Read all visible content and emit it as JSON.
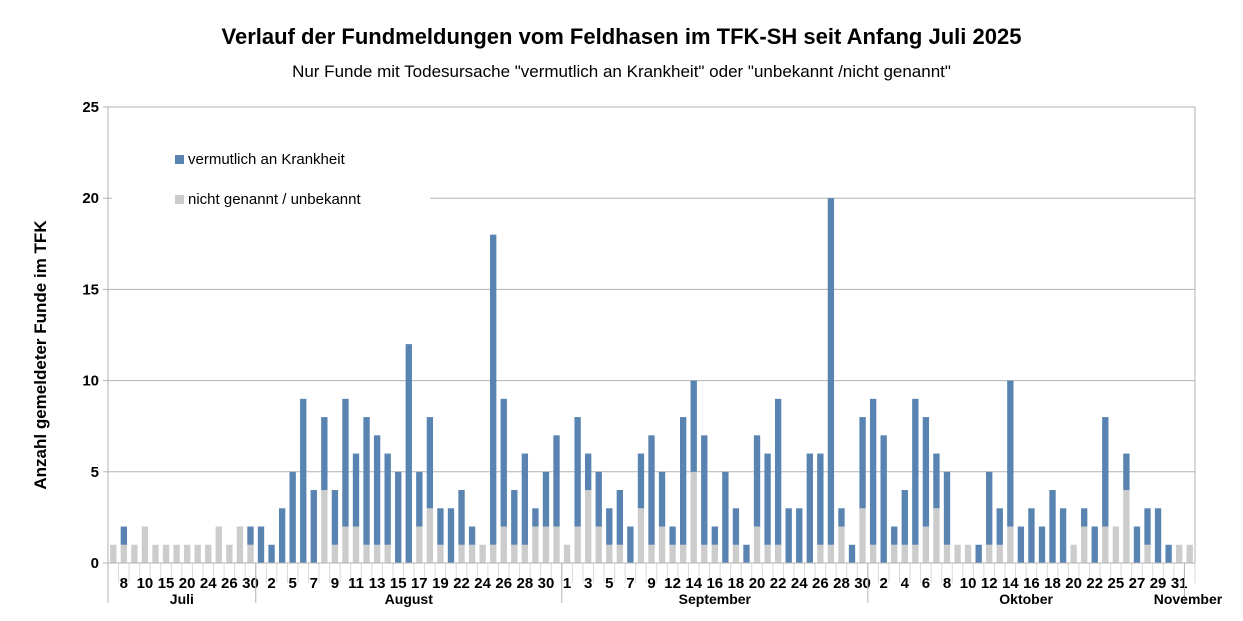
{
  "chart_data": {
    "type": "bar",
    "stacked": true,
    "title": "Verlauf der Fundmeldungen vom Feldhasen im TFK-SH seit Anfang Juli 2025",
    "subtitle": "Nur Funde mit Todesursache \"vermutlich an Krankheit\" oder \"unbekannt /nicht genannt\"",
    "xlabel": "",
    "ylabel": "Anzahl gemeldeter Funde im TFK",
    "ylim": [
      0,
      25
    ],
    "yticks": [
      "0",
      "5",
      "10",
      "15",
      "20",
      "25"
    ],
    "grid": true,
    "legend_position": "top-left",
    "colors": {
      "krankheit": "#5983b0",
      "unbekannt": "#cccccc"
    },
    "series": [
      {
        "name": "vermutlich an Krankheit",
        "key": "krankheit"
      },
      {
        "name": "nicht genannt / unbekannt",
        "key": "unbekannt"
      }
    ],
    "months": [
      {
        "name": "Juli",
        "bars": [
          {
            "label": "",
            "unbekannt": 1,
            "krankheit": 0
          },
          {
            "label": "8",
            "unbekannt": 1,
            "krankheit": 1
          },
          {
            "label": "",
            "unbekannt": 1,
            "krankheit": 0
          },
          {
            "label": "10",
            "unbekannt": 2,
            "krankheit": 0
          },
          {
            "label": "",
            "unbekannt": 1,
            "krankheit": 0
          },
          {
            "label": "15",
            "unbekannt": 1,
            "krankheit": 0
          },
          {
            "label": "",
            "unbekannt": 1,
            "krankheit": 0
          },
          {
            "label": "20",
            "unbekannt": 1,
            "krankheit": 0
          },
          {
            "label": "",
            "unbekannt": 1,
            "krankheit": 0
          },
          {
            "label": "24",
            "unbekannt": 1,
            "krankheit": 0
          },
          {
            "label": "",
            "unbekannt": 2,
            "krankheit": 0
          },
          {
            "label": "26",
            "unbekannt": 1,
            "krankheit": 0
          },
          {
            "label": "",
            "unbekannt": 2,
            "krankheit": 0
          },
          {
            "label": "30",
            "unbekannt": 1,
            "krankheit": 1
          }
        ]
      },
      {
        "name": "August",
        "bars": [
          {
            "label": "",
            "unbekannt": 0,
            "krankheit": 2
          },
          {
            "label": "2",
            "unbekannt": 0,
            "krankheit": 1
          },
          {
            "label": "",
            "unbekannt": 0,
            "krankheit": 3
          },
          {
            "label": "5",
            "unbekannt": 0,
            "krankheit": 5
          },
          {
            "label": "",
            "unbekannt": 0,
            "krankheit": 9
          },
          {
            "label": "7",
            "unbekannt": 0,
            "krankheit": 4
          },
          {
            "label": "",
            "unbekannt": 4,
            "krankheit": 4
          },
          {
            "label": "9",
            "unbekannt": 1,
            "krankheit": 3
          },
          {
            "label": "",
            "unbekannt": 2,
            "krankheit": 7
          },
          {
            "label": "11",
            "unbekannt": 2,
            "krankheit": 4
          },
          {
            "label": "",
            "unbekannt": 1,
            "krankheit": 7
          },
          {
            "label": "13",
            "unbekannt": 1,
            "krankheit": 6
          },
          {
            "label": "",
            "unbekannt": 1,
            "krankheit": 5
          },
          {
            "label": "15",
            "unbekannt": 0,
            "krankheit": 5
          },
          {
            "label": "",
            "unbekannt": 0,
            "krankheit": 12
          },
          {
            "label": "17",
            "unbekannt": 2,
            "krankheit": 3
          },
          {
            "label": "",
            "unbekannt": 3,
            "krankheit": 5
          },
          {
            "label": "19",
            "unbekannt": 1,
            "krankheit": 2
          },
          {
            "label": "",
            "unbekannt": 0,
            "krankheit": 3
          },
          {
            "label": "22",
            "unbekannt": 1,
            "krankheit": 3
          },
          {
            "label": "",
            "unbekannt": 1,
            "krankheit": 1
          },
          {
            "label": "24",
            "unbekannt": 1,
            "krankheit": 0
          },
          {
            "label": "",
            "unbekannt": 1,
            "krankheit": 17
          },
          {
            "label": "26",
            "unbekannt": 2,
            "krankheit": 7
          },
          {
            "label": "",
            "unbekannt": 1,
            "krankheit": 3
          },
          {
            "label": "28",
            "unbekannt": 1,
            "krankheit": 5
          },
          {
            "label": "",
            "unbekannt": 2,
            "krankheit": 1
          },
          {
            "label": "30",
            "unbekannt": 2,
            "krankheit": 3
          },
          {
            "label": "",
            "unbekannt": 2,
            "krankheit": 5
          }
        ]
      },
      {
        "name": "September",
        "bars": [
          {
            "label": "1",
            "unbekannt": 1,
            "krankheit": 0
          },
          {
            "label": "",
            "unbekannt": 2,
            "krankheit": 6
          },
          {
            "label": "3",
            "unbekannt": 4,
            "krankheit": 2
          },
          {
            "label": "",
            "unbekannt": 2,
            "krankheit": 3
          },
          {
            "label": "5",
            "unbekannt": 1,
            "krankheit": 2
          },
          {
            "label": "",
            "unbekannt": 1,
            "krankheit": 3
          },
          {
            "label": "7",
            "unbekannt": 0,
            "krankheit": 2
          },
          {
            "label": "",
            "unbekannt": 3,
            "krankheit": 3
          },
          {
            "label": "9",
            "unbekannt": 1,
            "krankheit": 6
          },
          {
            "label": "",
            "unbekannt": 2,
            "krankheit": 3
          },
          {
            "label": "12",
            "unbekannt": 1,
            "krankheit": 1
          },
          {
            "label": "",
            "unbekannt": 1,
            "krankheit": 7
          },
          {
            "label": "14",
            "unbekannt": 5,
            "krankheit": 5
          },
          {
            "label": "",
            "unbekannt": 1,
            "krankheit": 6
          },
          {
            "label": "16",
            "unbekannt": 1,
            "krankheit": 1
          },
          {
            "label": "",
            "unbekannt": 0,
            "krankheit": 5
          },
          {
            "label": "18",
            "unbekannt": 1,
            "krankheit": 2
          },
          {
            "label": "",
            "unbekannt": 0,
            "krankheit": 1
          },
          {
            "label": "20",
            "unbekannt": 2,
            "krankheit": 5
          },
          {
            "label": "",
            "unbekannt": 1,
            "krankheit": 5
          },
          {
            "label": "22",
            "unbekannt": 1,
            "krankheit": 8
          },
          {
            "label": "",
            "unbekannt": 0,
            "krankheit": 3
          },
          {
            "label": "24",
            "unbekannt": 0,
            "krankheit": 3
          },
          {
            "label": "",
            "unbekannt": 0,
            "krankheit": 6
          },
          {
            "label": "26",
            "unbekannt": 1,
            "krankheit": 5
          },
          {
            "label": "",
            "unbekannt": 1,
            "krankheit": 19
          },
          {
            "label": "28",
            "unbekannt": 2,
            "krankheit": 1
          },
          {
            "label": "",
            "unbekannt": 0,
            "krankheit": 1
          },
          {
            "label": "30",
            "unbekannt": 3,
            "krankheit": 5
          }
        ]
      },
      {
        "name": "Oktober",
        "bars": [
          {
            "label": "",
            "unbekannt": 1,
            "krankheit": 8
          },
          {
            "label": "2",
            "unbekannt": 0,
            "krankheit": 7
          },
          {
            "label": "",
            "unbekannt": 1,
            "krankheit": 1
          },
          {
            "label": "4",
            "unbekannt": 1,
            "krankheit": 3
          },
          {
            "label": "",
            "unbekannt": 1,
            "krankheit": 8
          },
          {
            "label": "6",
            "unbekannt": 2,
            "krankheit": 6
          },
          {
            "label": "",
            "unbekannt": 3,
            "krankheit": 3
          },
          {
            "label": "8",
            "unbekannt": 1,
            "krankheit": 4
          },
          {
            "label": "",
            "unbekannt": 1,
            "krankheit": 0
          },
          {
            "label": "10",
            "unbekannt": 1,
            "krankheit": 0
          },
          {
            "label": "",
            "unbekannt": 0,
            "krankheit": 1
          },
          {
            "label": "12",
            "unbekannt": 1,
            "krankheit": 4
          },
          {
            "label": "",
            "unbekannt": 1,
            "krankheit": 2
          },
          {
            "label": "14",
            "unbekannt": 2,
            "krankheit": 8
          },
          {
            "label": "",
            "unbekannt": 0,
            "krankheit": 2
          },
          {
            "label": "16",
            "unbekannt": 0,
            "krankheit": 3
          },
          {
            "label": "",
            "unbekannt": 0,
            "krankheit": 2
          },
          {
            "label": "18",
            "unbekannt": 0,
            "krankheit": 4
          },
          {
            "label": "",
            "unbekannt": 0,
            "krankheit": 3
          },
          {
            "label": "20",
            "unbekannt": 1,
            "krankheit": 0
          },
          {
            "label": "",
            "unbekannt": 2,
            "krankheit": 1
          },
          {
            "label": "22",
            "unbekannt": 0,
            "krankheit": 2
          },
          {
            "label": "",
            "unbekannt": 2,
            "krankheit": 6
          },
          {
            "label": "25",
            "unbekannt": 2,
            "krankheit": 0
          },
          {
            "label": "",
            "unbekannt": 4,
            "krankheit": 2
          },
          {
            "label": "27",
            "unbekannt": 0,
            "krankheit": 2
          },
          {
            "label": "",
            "unbekannt": 1,
            "krankheit": 2
          },
          {
            "label": "29",
            "unbekannt": 0,
            "krankheit": 3
          },
          {
            "label": "",
            "unbekannt": 0,
            "krankheit": 1
          },
          {
            "label": "31",
            "unbekannt": 1,
            "krankheit": 0
          }
        ]
      },
      {
        "name": "November",
        "bars": [
          {
            "label": "",
            "unbekannt": 1,
            "krankheit": 0
          }
        ]
      }
    ]
  }
}
